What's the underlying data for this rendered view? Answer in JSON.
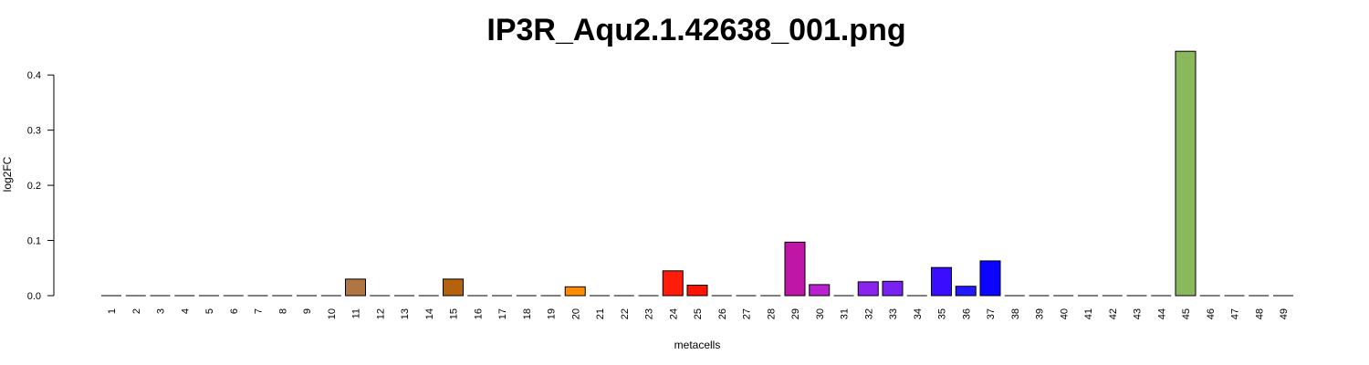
{
  "chart_data": {
    "type": "bar",
    "title": "IP3R_Aqu2.1.42638_001.png",
    "xlabel": "metacells",
    "ylabel": "log2FC",
    "ylim": [
      0,
      0.44
    ],
    "yticks": [
      "0.0",
      "0.1",
      "0.2",
      "0.3",
      "0.4"
    ],
    "grid": false,
    "legend": "none",
    "categories": [
      "1",
      "2",
      "3",
      "4",
      "5",
      "6",
      "7",
      "8",
      "9",
      "10",
      "11",
      "12",
      "13",
      "14",
      "15",
      "16",
      "17",
      "18",
      "19",
      "20",
      "21",
      "22",
      "23",
      "24",
      "25",
      "26",
      "27",
      "28",
      "29",
      "30",
      "31",
      "32",
      "33",
      "34",
      "35",
      "36",
      "37",
      "38",
      "39",
      "40",
      "41",
      "42",
      "43",
      "44",
      "45",
      "46",
      "47",
      "48",
      "49"
    ],
    "values": [
      0,
      0,
      0,
      0,
      0,
      0,
      0,
      0,
      0,
      0,
      0.03,
      0,
      0,
      0,
      0.03,
      0,
      0,
      0,
      0,
      0.016,
      0,
      0,
      0,
      0.045,
      0.019,
      0,
      0,
      0,
      0.097,
      0.02,
      0,
      0.025,
      0.026,
      0,
      0.051,
      0.017,
      0.063,
      0,
      0,
      0,
      0,
      0,
      0,
      0,
      0.443,
      0,
      0,
      0,
      0
    ],
    "colors": [
      "#000000",
      "#000000",
      "#000000",
      "#000000",
      "#000000",
      "#000000",
      "#000000",
      "#000000",
      "#000000",
      "#000000",
      "#b07545",
      "#000000",
      "#000000",
      "#000000",
      "#b5620f",
      "#000000",
      "#000000",
      "#000000",
      "#000000",
      "#ff8c00",
      "#000000",
      "#000000",
      "#000000",
      "#ff1d0a",
      "#ff1300",
      "#000000",
      "#000000",
      "#000000",
      "#c016a6",
      "#b921cf",
      "#000000",
      "#8b22ef",
      "#7722f2",
      "#000000",
      "#3a0dff",
      "#2319ff",
      "#0b05ff",
      "#000000",
      "#000000",
      "#000000",
      "#000000",
      "#000000",
      "#000000",
      "#000000",
      "#8ab85c",
      "#000000",
      "#000000",
      "#000000",
      "#000000"
    ]
  }
}
